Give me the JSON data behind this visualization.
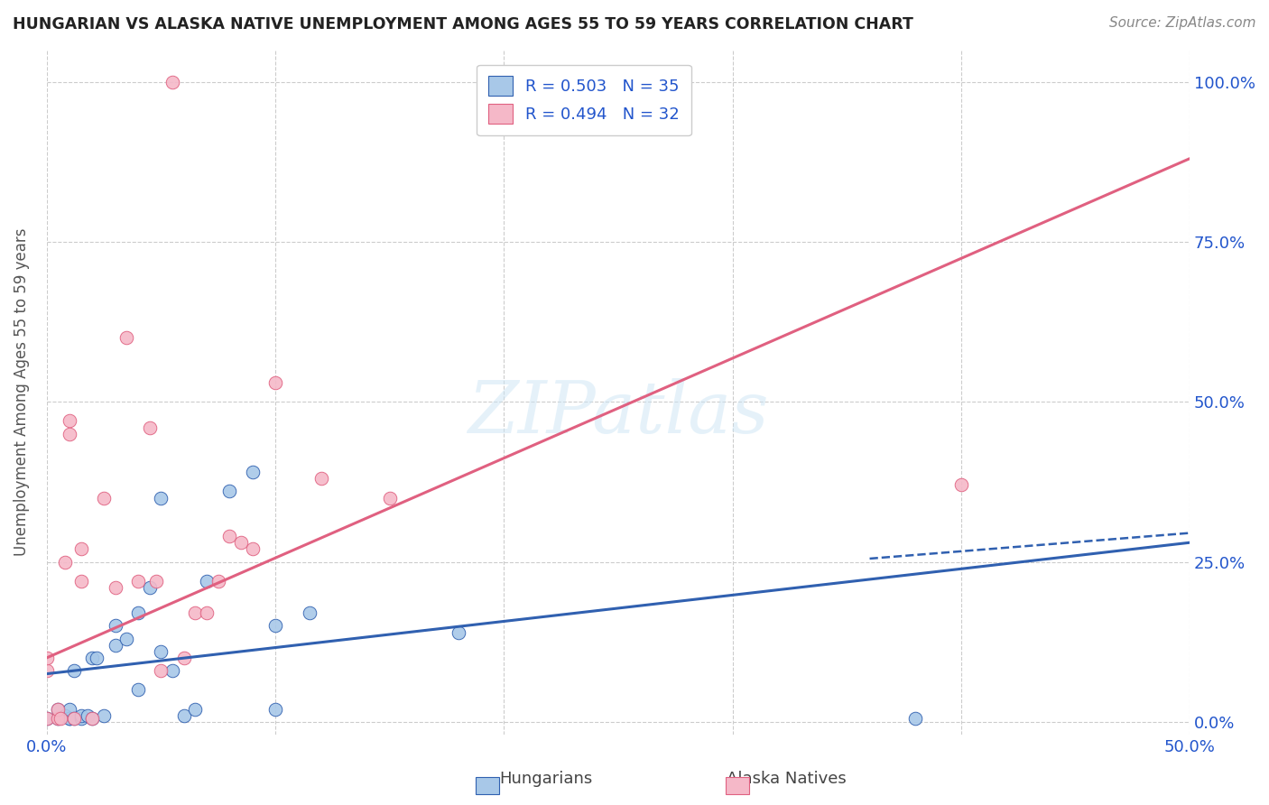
{
  "title": "HUNGARIAN VS ALASKA NATIVE UNEMPLOYMENT AMONG AGES 55 TO 59 YEARS CORRELATION CHART",
  "source": "Source: ZipAtlas.com",
  "ylabel": "Unemployment Among Ages 55 to 59 years",
  "xlim": [
    0.0,
    50.0
  ],
  "ylim": [
    -2.0,
    105.0
  ],
  "xticks": [
    0.0,
    10.0,
    20.0,
    30.0,
    40.0,
    50.0
  ],
  "xtick_labels": [
    "0.0%",
    "",
    "",
    "",
    "",
    "50.0%"
  ],
  "yticks_right": [
    0.0,
    25.0,
    50.0,
    75.0,
    100.0
  ],
  "ytick_labels_right": [
    "0.0%",
    "25.0%",
    "50.0%",
    "75.0%",
    "100.0%"
  ],
  "watermark": "ZIPatlas",
  "color_hungarian": "#a8c8e8",
  "color_alaska": "#f5b8c8",
  "color_line_hungarian": "#3060b0",
  "color_line_alaska": "#e06080",
  "color_text_blue": "#2255cc",
  "hungarians_x": [
    0.0,
    0.5,
    0.5,
    0.8,
    1.0,
    1.0,
    1.0,
    1.2,
    1.2,
    1.5,
    1.5,
    1.8,
    2.0,
    2.0,
    2.2,
    2.5,
    3.0,
    3.0,
    3.5,
    4.0,
    4.0,
    4.5,
    5.0,
    5.0,
    5.5,
    6.0,
    6.5,
    7.0,
    8.0,
    9.0,
    10.0,
    10.0,
    11.5,
    18.0,
    38.0
  ],
  "hungarians_y": [
    0.5,
    0.5,
    2.0,
    1.0,
    0.5,
    0.5,
    2.0,
    0.5,
    8.0,
    0.5,
    1.0,
    1.0,
    0.5,
    10.0,
    10.0,
    1.0,
    12.0,
    15.0,
    13.0,
    5.0,
    17.0,
    21.0,
    11.0,
    35.0,
    8.0,
    1.0,
    2.0,
    22.0,
    36.0,
    39.0,
    15.0,
    2.0,
    17.0,
    14.0,
    0.5
  ],
  "alaska_x": [
    0.0,
    0.0,
    0.0,
    0.5,
    0.5,
    0.6,
    0.8,
    1.0,
    1.0,
    1.2,
    1.5,
    1.5,
    2.0,
    2.5,
    3.0,
    3.5,
    4.0,
    4.5,
    4.8,
    5.0,
    5.5,
    6.0,
    6.5,
    7.0,
    7.5,
    8.0,
    8.5,
    9.0,
    10.0,
    12.0,
    15.0,
    40.0
  ],
  "alaska_y": [
    8.0,
    10.0,
    0.5,
    0.5,
    2.0,
    0.5,
    25.0,
    45.0,
    47.0,
    0.5,
    22.0,
    27.0,
    0.5,
    35.0,
    21.0,
    60.0,
    22.0,
    46.0,
    22.0,
    8.0,
    100.0,
    10.0,
    17.0,
    17.0,
    22.0,
    29.0,
    28.0,
    27.0,
    53.0,
    38.0,
    35.0,
    37.0
  ],
  "hung_reg_x0": 0.0,
  "hung_reg_y0": 7.5,
  "hung_reg_x1": 50.0,
  "hung_reg_y1": 28.0,
  "hung_dash_x0": 36.0,
  "hung_dash_y0": 25.5,
  "hung_dash_x1": 50.0,
  "hung_dash_y1": 29.5,
  "alaska_reg_x0": 0.0,
  "alaska_reg_y0": 10.0,
  "alaska_reg_x1": 50.0,
  "alaska_reg_y1": 88.0
}
